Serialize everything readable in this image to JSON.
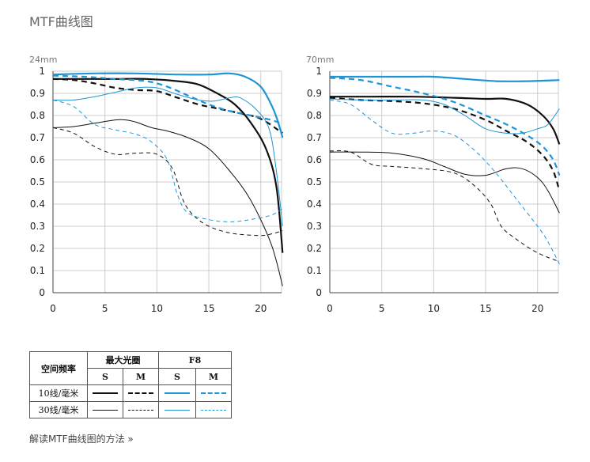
{
  "page": {
    "title": "MTF曲线图",
    "link_text": "解读MTF曲线图的方法 »"
  },
  "colors": {
    "black": "#111111",
    "blue": "#1e95d6",
    "grid": "#cccccc"
  },
  "legend": {
    "row_header": "空间频率",
    "group_max_aperture": "最大光圈",
    "group_f8": "F8",
    "s": "S",
    "m": "M",
    "row_10": "10线/毫米",
    "row_30": "30线/毫米"
  },
  "chart_data": [
    {
      "type": "line",
      "label": "24mm",
      "xlim": [
        0,
        22
      ],
      "ylim": [
        0,
        1
      ],
      "xticks": [
        "0",
        "5",
        "10",
        "15",
        "20"
      ],
      "yticks": [
        "0",
        "0.1",
        "0.2",
        "0.3",
        "0.4",
        "0.5",
        "0.6",
        "0.7",
        "0.8",
        "0.9",
        "1"
      ],
      "grid": true,
      "series": [
        {
          "aperture": "max",
          "freq": "10",
          "orientation": "S",
          "color": "black",
          "dash": false,
          "width": 2.2,
          "x": [
            0,
            3,
            6,
            9,
            12,
            14,
            16,
            17.5,
            19,
            20.5,
            21.5,
            22.1
          ],
          "y": [
            0.965,
            0.965,
            0.965,
            0.965,
            0.955,
            0.94,
            0.895,
            0.85,
            0.77,
            0.65,
            0.48,
            0.18
          ]
        },
        {
          "aperture": "max",
          "freq": "10",
          "orientation": "M",
          "color": "black",
          "dash": true,
          "width": 2.2,
          "x": [
            0,
            2,
            4,
            6,
            8,
            10,
            12,
            14,
            16,
            18,
            20,
            22.1
          ],
          "y": [
            0.965,
            0.96,
            0.945,
            0.925,
            0.915,
            0.91,
            0.88,
            0.85,
            0.83,
            0.81,
            0.785,
            0.72
          ]
        },
        {
          "aperture": "f8",
          "freq": "10",
          "orientation": "S",
          "color": "blue",
          "dash": false,
          "width": 2.2,
          "x": [
            0,
            4,
            8,
            12,
            15,
            17,
            18.5,
            20,
            21,
            21.6,
            22.1
          ],
          "y": [
            0.985,
            0.99,
            0.99,
            0.985,
            0.985,
            0.99,
            0.975,
            0.93,
            0.85,
            0.78,
            0.7
          ]
        },
        {
          "aperture": "f8",
          "freq": "10",
          "orientation": "M",
          "color": "blue",
          "dash": true,
          "width": 2.2,
          "x": [
            0,
            3,
            6,
            9,
            11,
            13,
            15,
            17,
            19,
            21,
            22.1
          ],
          "y": [
            0.98,
            0.975,
            0.965,
            0.955,
            0.93,
            0.89,
            0.85,
            0.82,
            0.8,
            0.78,
            0.76
          ]
        },
        {
          "aperture": "max",
          "freq": "30",
          "orientation": "S",
          "color": "black",
          "dash": false,
          "width": 1,
          "x": [
            0,
            2,
            4,
            6,
            7,
            8,
            9.5,
            11,
            13,
            15,
            17,
            19,
            21,
            22.1
          ],
          "y": [
            0.745,
            0.75,
            0.765,
            0.78,
            0.78,
            0.77,
            0.745,
            0.73,
            0.7,
            0.65,
            0.55,
            0.42,
            0.22,
            0.03
          ]
        },
        {
          "aperture": "max",
          "freq": "30",
          "orientation": "M",
          "color": "black",
          "dash": true,
          "width": 1,
          "x": [
            0,
            2,
            4,
            6,
            8,
            10,
            11.5,
            12.5,
            13.5,
            15,
            17,
            19,
            20.5,
            22.1
          ],
          "y": [
            0.745,
            0.72,
            0.66,
            0.625,
            0.63,
            0.625,
            0.56,
            0.42,
            0.35,
            0.3,
            0.27,
            0.26,
            0.26,
            0.28
          ]
        },
        {
          "aperture": "f8",
          "freq": "30",
          "orientation": "S",
          "color": "blue",
          "dash": false,
          "width": 1,
          "x": [
            0,
            2,
            4,
            6,
            8,
            10,
            12,
            14,
            15.5,
            17,
            18,
            19.5,
            20.8,
            21.5,
            22.1
          ],
          "y": [
            0.87,
            0.87,
            0.885,
            0.905,
            0.925,
            0.925,
            0.895,
            0.87,
            0.865,
            0.88,
            0.88,
            0.83,
            0.74,
            0.55,
            0.3
          ]
        },
        {
          "aperture": "f8",
          "freq": "30",
          "orientation": "M",
          "color": "blue",
          "dash": true,
          "width": 1,
          "x": [
            0,
            2,
            4,
            6,
            8,
            9.5,
            11,
            12,
            13,
            15,
            17,
            19,
            21,
            22.1
          ],
          "y": [
            0.87,
            0.84,
            0.76,
            0.735,
            0.715,
            0.68,
            0.6,
            0.44,
            0.36,
            0.33,
            0.32,
            0.33,
            0.35,
            0.38
          ]
        }
      ]
    },
    {
      "type": "line",
      "label": "70mm",
      "xlim": [
        0,
        22
      ],
      "ylim": [
        0,
        1
      ],
      "xticks": [
        "0",
        "5",
        "10",
        "15",
        "20"
      ],
      "yticks": [
        "0",
        "0.1",
        "0.2",
        "0.3",
        "0.4",
        "0.5",
        "0.6",
        "0.7",
        "0.8",
        "0.9",
        "1"
      ],
      "grid": true,
      "series": [
        {
          "aperture": "max",
          "freq": "10",
          "orientation": "S",
          "color": "black",
          "dash": false,
          "width": 2.2,
          "x": [
            0,
            4,
            8,
            12,
            15,
            17,
            19,
            20.5,
            21.5,
            22.1
          ],
          "y": [
            0.885,
            0.885,
            0.885,
            0.88,
            0.875,
            0.875,
            0.85,
            0.8,
            0.74,
            0.67
          ]
        },
        {
          "aperture": "max",
          "freq": "10",
          "orientation": "M",
          "color": "black",
          "dash": true,
          "width": 2.2,
          "x": [
            0,
            3,
            6,
            9,
            12,
            15,
            17,
            19,
            20.5,
            21.5,
            22.1
          ],
          "y": [
            0.88,
            0.87,
            0.865,
            0.855,
            0.83,
            0.78,
            0.73,
            0.68,
            0.62,
            0.55,
            0.46
          ]
        },
        {
          "aperture": "f8",
          "freq": "10",
          "orientation": "S",
          "color": "blue",
          "dash": false,
          "width": 2.2,
          "x": [
            0,
            4,
            8,
            10,
            13,
            16,
            19,
            22.1
          ],
          "y": [
            0.975,
            0.975,
            0.975,
            0.975,
            0.965,
            0.955,
            0.955,
            0.96
          ]
        },
        {
          "aperture": "f8",
          "freq": "10",
          "orientation": "M",
          "color": "blue",
          "dash": true,
          "width": 2.2,
          "x": [
            0,
            3,
            6,
            9,
            12,
            15,
            17,
            19,
            20.5,
            21.5,
            22.1
          ],
          "y": [
            0.97,
            0.96,
            0.93,
            0.9,
            0.86,
            0.8,
            0.76,
            0.71,
            0.66,
            0.6,
            0.53
          ]
        },
        {
          "aperture": "max",
          "freq": "30",
          "orientation": "S",
          "color": "black",
          "dash": false,
          "width": 1,
          "x": [
            0,
            3,
            6,
            9,
            11,
            13,
            15,
            17,
            18.5,
            20,
            21,
            22.1
          ],
          "y": [
            0.635,
            0.635,
            0.63,
            0.605,
            0.57,
            0.535,
            0.53,
            0.56,
            0.56,
            0.52,
            0.46,
            0.36
          ]
        },
        {
          "aperture": "max",
          "freq": "30",
          "orientation": "M",
          "color": "black",
          "dash": true,
          "width": 1,
          "x": [
            0,
            2,
            4,
            6,
            9,
            12,
            14,
            15.5,
            16.5,
            18,
            20,
            22.1
          ],
          "y": [
            0.64,
            0.635,
            0.58,
            0.57,
            0.56,
            0.54,
            0.48,
            0.4,
            0.3,
            0.24,
            0.18,
            0.14
          ]
        },
        {
          "aperture": "f8",
          "freq": "30",
          "orientation": "S",
          "color": "blue",
          "dash": false,
          "width": 1,
          "x": [
            0,
            3,
            6,
            9,
            11,
            13,
            15,
            17,
            18.5,
            20,
            21,
            22.1
          ],
          "y": [
            0.875,
            0.87,
            0.87,
            0.87,
            0.85,
            0.8,
            0.74,
            0.72,
            0.72,
            0.74,
            0.76,
            0.83
          ]
        },
        {
          "aperture": "f8",
          "freq": "30",
          "orientation": "M",
          "color": "blue",
          "dash": true,
          "width": 1,
          "x": [
            0,
            2,
            4,
            6,
            8,
            10,
            12,
            14,
            16,
            18,
            20,
            21,
            22.1
          ],
          "y": [
            0.87,
            0.85,
            0.78,
            0.72,
            0.72,
            0.73,
            0.71,
            0.64,
            0.54,
            0.42,
            0.3,
            0.23,
            0.13
          ]
        }
      ]
    }
  ]
}
